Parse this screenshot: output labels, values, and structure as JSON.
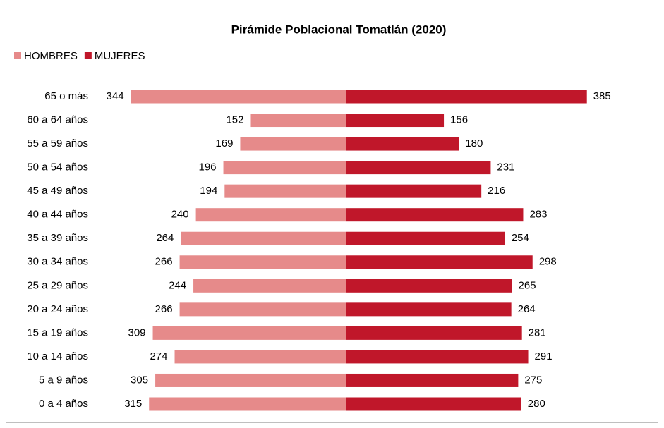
{
  "chart_data": {
    "type": "bar",
    "orientation": "horizontal",
    "layout": "pyramid",
    "title": "Pirámide Poblacional Tomatlán (2020)",
    "categories": [
      "65 o más",
      "60 a 64 años",
      "55 a 59 años",
      "50 a 54 años",
      "45 a 49 años",
      "40 a 44 años",
      "35 a 39 años",
      "30 a 34 años",
      "25 a 29 años",
      "20 a 24 años",
      "15 a 19 años",
      "10 a 14 años",
      "5 a 9 años",
      "0 a 4 años"
    ],
    "series": [
      {
        "name": "HOMBRES",
        "color": "#e68a8a",
        "side": "left",
        "values": [
          344,
          152,
          169,
          196,
          194,
          240,
          264,
          266,
          244,
          266,
          309,
          274,
          305,
          315
        ]
      },
      {
        "name": "MUJERES",
        "color": "#c0172a",
        "side": "right",
        "values": [
          385,
          156,
          180,
          231,
          216,
          283,
          254,
          298,
          265,
          264,
          281,
          291,
          275,
          280
        ]
      }
    ],
    "legend": "top-left"
  }
}
